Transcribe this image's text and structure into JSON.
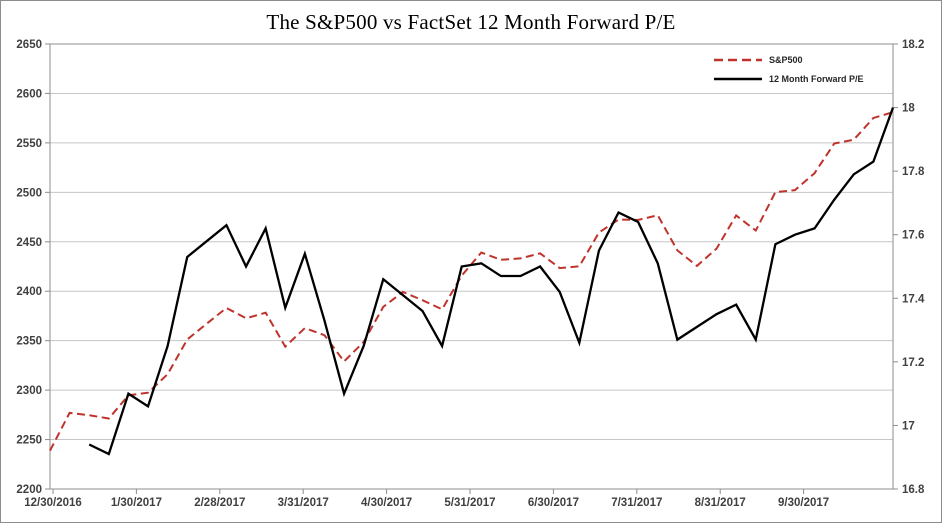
{
  "title": "The S&P500 vs FactSet 12 Month Forward P/E",
  "legend": {
    "items": [
      {
        "label": "S&P500",
        "color": "#c0332c",
        "dashed": true
      },
      {
        "label": "12 Month Forward P/E",
        "color": "#000000",
        "dashed": false
      }
    ]
  },
  "chart_data": {
    "type": "line",
    "title": "The S&P500 vs FactSet 12 Month Forward P/E",
    "x": [
      "12/30/2016",
      "1/6/2017",
      "1/13/2017",
      "1/20/2017",
      "1/27/2017",
      "2/3/2017",
      "2/10/2017",
      "2/17/2017",
      "2/24/2017",
      "3/3/2017",
      "3/10/2017",
      "3/17/2017",
      "3/24/2017",
      "3/31/2017",
      "4/7/2017",
      "4/13/2017",
      "4/21/2017",
      "4/28/2017",
      "5/5/2017",
      "5/12/2017",
      "5/19/2017",
      "5/26/2017",
      "6/2/2017",
      "6/9/2017",
      "6/16/2017",
      "6/23/2017",
      "6/30/2017",
      "7/7/2017",
      "7/14/2017",
      "7/21/2017",
      "7/28/2017",
      "8/4/2017",
      "8/11/2017",
      "8/18/2017",
      "8/25/2017",
      "9/1/2017",
      "9/8/2017",
      "9/15/2017",
      "9/22/2017",
      "9/29/2017",
      "10/6/2017",
      "10/13/2017",
      "10/20/2017",
      "10/27/2017"
    ],
    "x_tick_labels": [
      "12/30/2016",
      "1/30/2017",
      "2/28/2017",
      "3/31/2017",
      "4/30/2017",
      "5/31/2017",
      "6/30/2017",
      "7/31/2017",
      "8/31/2017",
      "9/30/2017"
    ],
    "series": [
      {
        "name": "S&P500",
        "axis": "left",
        "color": "#c0332c",
        "dashed": true,
        "values": [
          2238.8,
          2277.0,
          2274.6,
          2271.3,
          2294.7,
          2297.4,
          2316.1,
          2351.2,
          2367.3,
          2383.1,
          2372.6,
          2378.3,
          2344.0,
          2362.7,
          2355.5,
          2329.0,
          2348.7,
          2384.2,
          2399.3,
          2390.9,
          2381.7,
          2415.8,
          2439.1,
          2431.8,
          2433.2,
          2438.3,
          2423.4,
          2425.2,
          2459.3,
          2472.5,
          2472.1,
          2476.8,
          2441.3,
          2425.6,
          2443.1,
          2476.6,
          2461.4,
          2500.2,
          2502.2,
          2519.4,
          2549.3,
          2553.2,
          2575.2,
          2581.1
        ]
      },
      {
        "name": "12 Month Forward P/E",
        "axis": "right",
        "color": "#000000",
        "dashed": false,
        "values": [
          null,
          null,
          16.94,
          16.91,
          17.1,
          17.06,
          17.25,
          17.53,
          17.58,
          17.63,
          17.5,
          17.62,
          17.37,
          17.54,
          17.33,
          17.1,
          17.25,
          17.46,
          17.41,
          17.36,
          17.25,
          17.5,
          17.51,
          17.47,
          17.47,
          17.5,
          17.42,
          17.26,
          17.55,
          17.67,
          17.64,
          17.51,
          17.27,
          17.31,
          17.35,
          17.38,
          17.27,
          17.57,
          17.6,
          17.62,
          17.71,
          17.79,
          17.83,
          18.0
        ]
      }
    ],
    "left_axis": {
      "min": 2200,
      "max": 2650,
      "step": 50,
      "tick_labels": [
        "2650",
        "2600",
        "2550",
        "2500",
        "2450",
        "2400",
        "2350",
        "2300",
        "2250",
        "2200"
      ]
    },
    "right_axis": {
      "min": 16.8,
      "max": 18.2,
      "step": 0.2,
      "tick_labels": [
        "18.2",
        "18",
        "17.8",
        "17.6",
        "17.4",
        "17.2",
        "17",
        "16.8"
      ]
    },
    "grid": "horizontal",
    "legend_position": "top-right"
  }
}
